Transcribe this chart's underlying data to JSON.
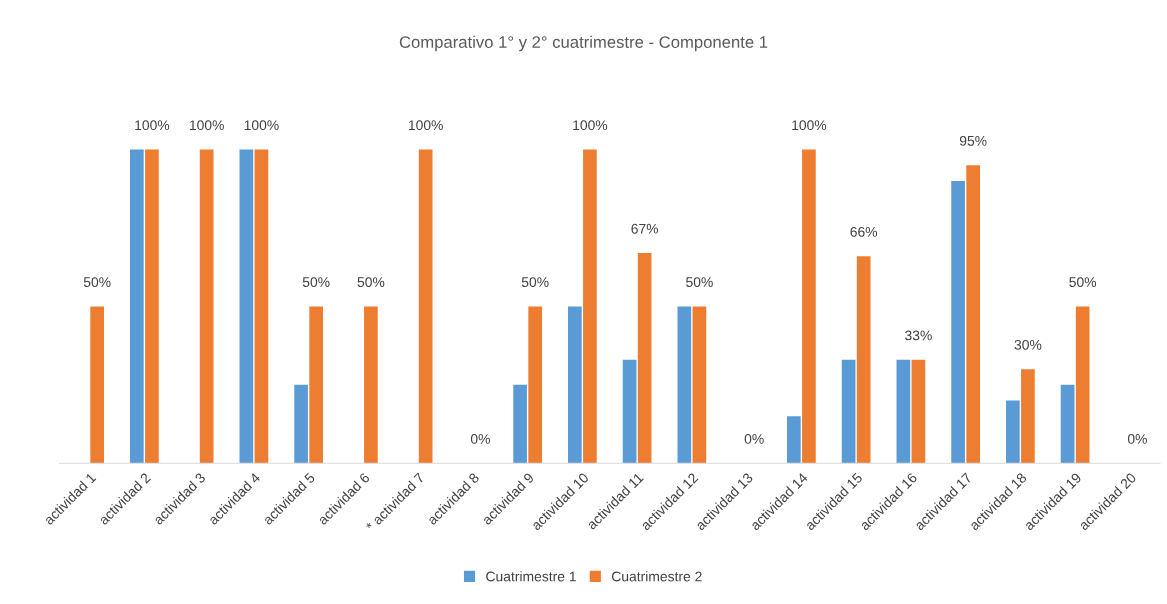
{
  "chart_data": {
    "type": "bar",
    "title": "Comparativo 1° y 2° cuatrimestre - Componente 1",
    "categories": [
      "actividad 1",
      "actividad 2",
      "actividad 3",
      "actividad 4",
      "actividad 5",
      "actividad 6",
      "* actividad 7",
      "actividad 8",
      "actividad 9",
      "actividad 10",
      "actividad 11",
      "actividad 12",
      "actividad 13",
      "actividad 14",
      "actividad 15",
      "actividad 16",
      "actividad 17",
      "actividad 18",
      "actividad 19",
      "actividad 20"
    ],
    "series": [
      {
        "name": "Cuatrimestre 1",
        "color": "#5b9bd5",
        "values": [
          0,
          100,
          0,
          100,
          25,
          0,
          0,
          0,
          25,
          50,
          33,
          50,
          0,
          15,
          33,
          33,
          90,
          20,
          25,
          0
        ]
      },
      {
        "name": "Cuatrimestre 2",
        "color": "#ed7d31",
        "values": [
          50,
          100,
          100,
          100,
          50,
          50,
          100,
          0,
          50,
          100,
          67,
          50,
          0,
          100,
          66,
          33,
          95,
          30,
          50,
          0
        ],
        "value_labels": [
          "50%",
          "100%",
          "100%",
          "100%",
          "50%",
          "50%",
          "100%",
          "0%",
          "50%",
          "100%",
          "67%",
          "50%",
          "0%",
          "100%",
          "66%",
          "33%",
          "95%",
          "30%",
          "50%",
          "0%"
        ]
      }
    ],
    "legend": "bottom",
    "grid": false
  }
}
